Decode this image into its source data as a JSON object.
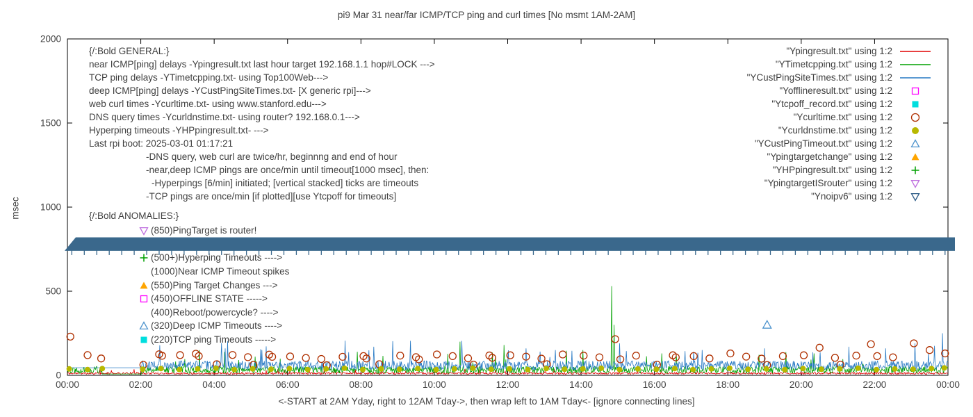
{
  "chart_data": {
    "type": "line+scatter",
    "title": "pi9 Mar 31  near/far ICMP/TCP ping and curl times [No msmt 1AM-2AM]",
    "ylabel": "msec",
    "xlabel": "<-START at 2AM Yday, right to 12AM Tday->, then wrap left to 1AM Tday<- [ignore connecting lines]",
    "x_ticks": [
      "00:00",
      "02:00",
      "04:00",
      "06:00",
      "08:00",
      "10:00",
      "12:00",
      "14:00",
      "16:00",
      "18:00",
      "20:00",
      "22:00",
      "00:00"
    ],
    "x_range_hours": [
      0,
      24
    ],
    "y_ticks": [
      0,
      500,
      1000,
      1500,
      2000
    ],
    "y_range": [
      0,
      2000
    ],
    "grid": false,
    "legend_position": "top-right",
    "legend": [
      {
        "label": "\"Ypingresult.txt\" using 1:2",
        "sample": "line",
        "color": "#e00000"
      },
      {
        "label": "\"YTimetcpping.txt\" using 1:2",
        "sample": "line",
        "color": "#00a000"
      },
      {
        "label": "\"YCustPingSiteTimes.txt\" using 1:2",
        "sample": "line",
        "color": "#2779c4"
      },
      {
        "label": "\"Yofflineresult.txt\" using 1:2",
        "sample": "square-open",
        "color": "#ff00ff"
      },
      {
        "label": "\"Ytcpoff_record.txt\" using 1:2",
        "sample": "square-filled",
        "color": "#00dede"
      },
      {
        "label": "\"Ycurltime.txt\" using 1:2",
        "sample": "circle-open",
        "color": "#b03000"
      },
      {
        "label": "\"Ycurldnstime.txt\" using 1:2",
        "sample": "circle-filled",
        "color": "#b8b800"
      },
      {
        "label": "\"YCustPingTimeout.txt\" using 1:2",
        "sample": "triangle-up-open",
        "color": "#4f94cd"
      },
      {
        "label": "\"Ypingtargetchange\" using 1:2",
        "sample": "triangle-filled",
        "color": "#ffa500"
      },
      {
        "label": "\"YHPpingresult.txt\" using 1:2",
        "sample": "plus",
        "color": "#00a000"
      },
      {
        "label": "\"YpingtargetISrouter\" using 1:2",
        "sample": "triangle-down-open",
        "color": "#bf6fdf"
      },
      {
        "label": "\"Ynoipv6\" using 1:2",
        "sample": "triangle-down-open",
        "color": "#2c5a86"
      }
    ],
    "annotations": {
      "general_lines": [
        {
          "text": "{/:Bold GENERAL:}",
          "indent": 0
        },
        {
          "text": "near ICMP[ping] delays -Ypingresult.txt last hour target 192.168.1.1 hop#LOCK --->",
          "indent": 0
        },
        {
          "text": "TCP ping delays -YTimetcpping.txt- using Top100Web--->",
          "indent": 0
        },
        {
          "text": "deep ICMP[ping] delays -YCustPingSiteTimes.txt- [X generic rpi]--->",
          "indent": 0
        },
        {
          "text": "web curl times -Ycurltime.txt- using www.stanford.edu--->",
          "indent": 0
        },
        {
          "text": "DNS query times -Ycurldnstime.txt- using router? 192.168.0.1--->",
          "indent": 0
        },
        {
          "text": "Hyperping timeouts -YHPpingresult.txt- --->",
          "indent": 0
        },
        {
          "text": "Last rpi boot: 2025-03-01 01:17:21",
          "indent": 0
        },
        {
          "text": "-DNS query, web curl are twice/hr, beginnng and end of hour",
          "indent": 1
        },
        {
          "text": "-near,deep ICMP pings are once/min until timeout[1000 msec], then:",
          "indent": 1
        },
        {
          "text": "-Hyperpings [6/min] initiated; [vertical stacked] ticks are timeouts",
          "indent": 2
        },
        {
          "text": "-TCP pings are once/min [if plotted][use Ytcpoff for timeouts]",
          "indent": 1
        }
      ],
      "anomalies_header": "{/:Bold ANOMALIES:}",
      "anomalies_items": [
        {
          "icon": "triangle-down-open",
          "color": "#bf6fdf",
          "text": "(850)PingTarget is router!"
        },
        {
          "icon": "",
          "color": "",
          "text": " "
        },
        {
          "icon": "plus",
          "color": "#00a000",
          "text": "(500+)Hyperping Timeouts ---->"
        },
        {
          "icon": "",
          "color": "",
          "text": "(1000)Near ICMP Timeout spikes"
        },
        {
          "icon": "triangle-filled",
          "color": "#ffa500",
          "text": "(550)Ping Target Changes --->"
        },
        {
          "icon": "square-open",
          "color": "#ff00ff",
          "text": "(450)OFFLINE STATE ----->"
        },
        {
          "icon": "",
          "color": "",
          "text": "(400)Reboot/powercycle? ---->"
        },
        {
          "icon": "triangle-up-open",
          "color": "#4f94cd",
          "text": "(320)Deep ICMP Timeouts ---->"
        },
        {
          "icon": "square-filled",
          "color": "#00dede",
          "text": "(220)TCP ping Timeouts ----->"
        }
      ]
    },
    "lines": [
      {
        "name": "Ypingresult",
        "color": "#e00000",
        "base": 10,
        "noise": 12,
        "seed": 11,
        "flat": [],
        "spikes": []
      },
      {
        "name": "YTimetcpping",
        "color": "#00a000",
        "base": 26,
        "noise": 42,
        "seed": 22,
        "flat": [
          [
            0.95,
            2.02,
            8
          ]
        ],
        "spikes": [
          [
            3.6,
            150
          ],
          [
            7.9,
            140
          ],
          [
            10.7,
            200
          ],
          [
            11.9,
            180
          ],
          [
            14.05,
            150
          ],
          [
            14.83,
            530
          ],
          [
            14.9,
            300
          ],
          [
            16.2,
            130
          ],
          [
            20.35,
            130
          ]
        ]
      },
      {
        "name": "YCustPingSiteTimes",
        "color": "#2779c4",
        "base": 50,
        "noise": 55,
        "seed": 33,
        "flat": [
          [
            0.0,
            2.02,
            45
          ]
        ],
        "spikes": [
          [
            4.3,
            160
          ],
          [
            5.3,
            150
          ],
          [
            8.35,
            170
          ],
          [
            9.35,
            205
          ],
          [
            12.5,
            160
          ],
          [
            13.3,
            150
          ],
          [
            15.05,
            190
          ],
          [
            17.3,
            150
          ],
          [
            19.0,
            160
          ],
          [
            21.3,
            170
          ],
          [
            22.3,
            160
          ],
          [
            23.1,
            190
          ],
          [
            23.85,
            250
          ]
        ]
      }
    ],
    "scatter": [
      {
        "name": "Ycurltime",
        "marker": "circle-open",
        "color": "#b03000",
        "size": 5,
        "points": [
          [
            0.08,
            230
          ],
          [
            0.55,
            120
          ],
          [
            0.92,
            100
          ],
          [
            2.07,
            62
          ],
          [
            2.5,
            125
          ],
          [
            2.58,
            116
          ],
          [
            3.07,
            120
          ],
          [
            3.5,
            128
          ],
          [
            3.58,
            114
          ],
          [
            4.07,
            66
          ],
          [
            4.5,
            121
          ],
          [
            4.92,
            108
          ],
          [
            5.07,
            62
          ],
          [
            5.5,
            123
          ],
          [
            5.58,
            110
          ],
          [
            6.07,
            112
          ],
          [
            6.5,
            103
          ],
          [
            6.92,
            97
          ],
          [
            7.07,
            60
          ],
          [
            7.5,
            110
          ],
          [
            8.07,
            114
          ],
          [
            8.15,
            100
          ],
          [
            8.5,
            66
          ],
          [
            9.07,
            117
          ],
          [
            9.5,
            108
          ],
          [
            9.58,
            95
          ],
          [
            10.07,
            124
          ],
          [
            10.5,
            114
          ],
          [
            10.92,
            101
          ],
          [
            11.07,
            63
          ],
          [
            11.5,
            118
          ],
          [
            11.58,
            104
          ],
          [
            12.07,
            119
          ],
          [
            12.5,
            111
          ],
          [
            12.92,
            99
          ],
          [
            13.07,
            66
          ],
          [
            13.5,
            124
          ],
          [
            14.07,
            117
          ],
          [
            14.5,
            107
          ],
          [
            14.93,
            215
          ],
          [
            15.07,
            95
          ],
          [
            15.5,
            117
          ],
          [
            16.07,
            63
          ],
          [
            16.5,
            119
          ],
          [
            16.58,
            107
          ],
          [
            17.07,
            114
          ],
          [
            17.5,
            100
          ],
          [
            18.07,
            130
          ],
          [
            18.5,
            111
          ],
          [
            18.92,
            99
          ],
          [
            19.07,
            61
          ],
          [
            19.5,
            114
          ],
          [
            20.07,
            119
          ],
          [
            20.5,
            164
          ],
          [
            20.92,
            104
          ],
          [
            21.07,
            63
          ],
          [
            21.5,
            117
          ],
          [
            21.9,
            185
          ],
          [
            22.07,
            114
          ],
          [
            22.5,
            107
          ],
          [
            23.07,
            190
          ],
          [
            23.5,
            150
          ],
          [
            23.92,
            130
          ]
        ]
      },
      {
        "name": "Ycurldnstime",
        "marker": "circle-filled",
        "color": "#b8b800",
        "size": 4.5,
        "points": [
          [
            0.05,
            38
          ],
          [
            0.55,
            34
          ],
          [
            0.95,
            40
          ],
          [
            2.05,
            36
          ],
          [
            2.55,
            40
          ],
          [
            3.05,
            34
          ],
          [
            3.55,
            38
          ],
          [
            4.05,
            42
          ],
          [
            4.55,
            34
          ],
          [
            5.05,
            38
          ],
          [
            5.55,
            36
          ],
          [
            6.05,
            40
          ],
          [
            6.55,
            34
          ],
          [
            7.05,
            38
          ],
          [
            7.55,
            42
          ],
          [
            8.05,
            34
          ],
          [
            8.55,
            38
          ],
          [
            9.05,
            36
          ],
          [
            9.55,
            40
          ],
          [
            10.05,
            34
          ],
          [
            10.55,
            38
          ],
          [
            11.05,
            42
          ],
          [
            11.55,
            36
          ],
          [
            12.05,
            38
          ],
          [
            12.55,
            34
          ],
          [
            13.05,
            40
          ],
          [
            13.55,
            36
          ],
          [
            14.05,
            38
          ],
          [
            14.55,
            42
          ],
          [
            15.05,
            34
          ],
          [
            15.55,
            38
          ],
          [
            16.05,
            36
          ],
          [
            16.55,
            40
          ],
          [
            17.05,
            34
          ],
          [
            17.55,
            38
          ],
          [
            18.05,
            42
          ],
          [
            18.55,
            36
          ],
          [
            19.05,
            38
          ],
          [
            19.55,
            34
          ],
          [
            20.05,
            40
          ],
          [
            20.55,
            36
          ],
          [
            21.05,
            38
          ],
          [
            21.55,
            42
          ],
          [
            22.05,
            34
          ],
          [
            22.55,
            38
          ],
          [
            23.05,
            36
          ],
          [
            23.55,
            40
          ],
          [
            23.9,
            44
          ]
        ]
      },
      {
        "name": "YCustPingTimeout",
        "marker": "triangle-up-open",
        "color": "#4f94cd",
        "size": 6,
        "points": [
          [
            19.07,
            300
          ]
        ]
      }
    ],
    "band": {
      "name": "Ynoipv6",
      "color": "#3a688c",
      "y_msec": 780,
      "height_msec": 80,
      "tick_interval_hours": 0.34
    }
  }
}
